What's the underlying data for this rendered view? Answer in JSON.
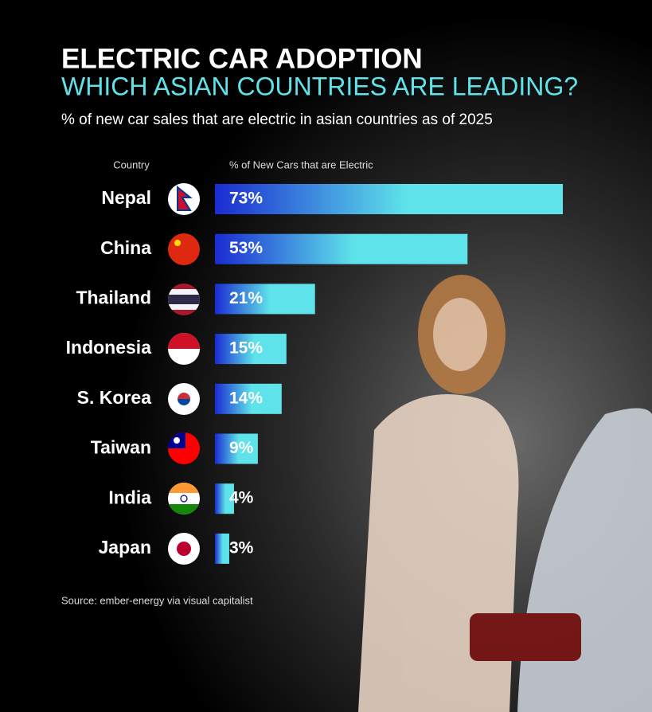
{
  "chart_data": {
    "type": "hbar",
    "title": "ELECTRIC CAR ADOPTION",
    "subtitle": "WHICH ASIAN COUNTRIES ARE LEADING?",
    "description": "% of new car sales that are electric in asian countries as of 2025",
    "y_label": "Country",
    "x_label": "% of New Cars that are Electric",
    "categories": [
      "Nepal",
      "China",
      "Thailand",
      "Indonesia",
      "S. Korea",
      "Taiwan",
      "India",
      "Japan"
    ],
    "values": [
      73,
      53,
      21,
      15,
      14,
      9,
      4,
      3
    ],
    "value_labels": [
      "73%",
      "53%",
      "21%",
      "15%",
      "14%",
      "9%",
      "4%",
      "3%"
    ],
    "colors": [
      "#1a2bd2",
      "#5ee3ea"
    ],
    "source": "Source: ember-energy via visual capitalist"
  }
}
